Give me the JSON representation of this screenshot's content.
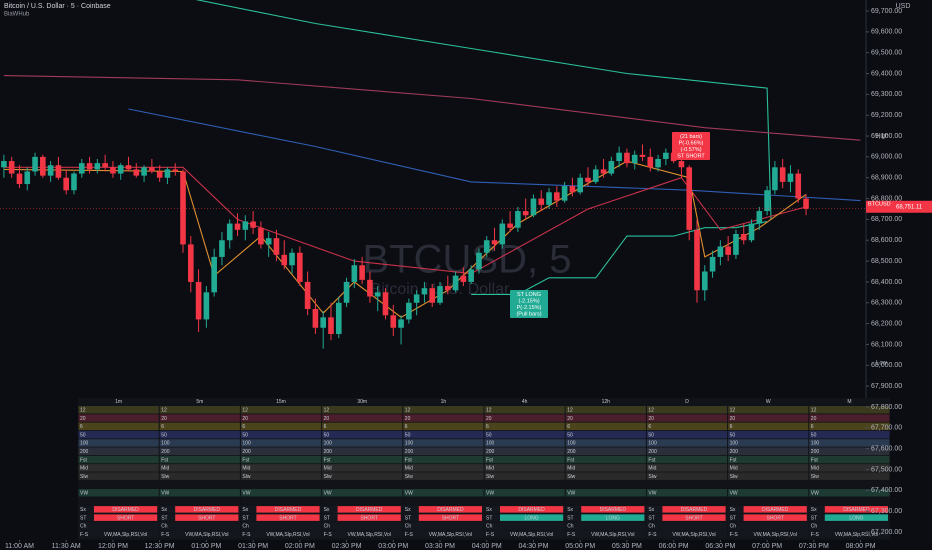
{
  "header": {
    "title": "Bitcoin / U.S. Dollar · 5 · Coinbase",
    "subtitle": "BiaWHub"
  },
  "watermark": {
    "symbol": "BTCUSD, 5",
    "name": "Bitcoin / U.S. Dollar"
  },
  "chart_data": {
    "type": "candlestick",
    "currency": "USD",
    "up_color": "#22ab94",
    "down_color": "#f23645",
    "xlim": [
      -0.5,
      110.7
    ],
    "xticks": [
      {
        "value": 2,
        "label": "11:00 AM"
      },
      {
        "value": 8,
        "label": "11:30 AM"
      },
      {
        "value": 14,
        "label": "12:00 PM"
      },
      {
        "value": 20,
        "label": "12:30 PM"
      },
      {
        "value": 26,
        "label": "01:00 PM"
      },
      {
        "value": 32,
        "label": "01:30 PM"
      },
      {
        "value": 38,
        "label": "02:00 PM"
      },
      {
        "value": 44,
        "label": "02:30 PM"
      },
      {
        "value": 50,
        "label": "03:00 PM"
      },
      {
        "value": 56,
        "label": "03:30 PM"
      },
      {
        "value": 62,
        "label": "04:00 PM"
      },
      {
        "value": 68,
        "label": "04:30 PM"
      },
      {
        "value": 74,
        "label": "05:00 PM"
      },
      {
        "value": 80,
        "label": "05:30 PM"
      },
      {
        "value": 86,
        "label": "06:00 PM"
      },
      {
        "value": 92,
        "label": "06:30 PM"
      },
      {
        "value": 98,
        "label": "07:00 PM"
      },
      {
        "value": 104,
        "label": "07:30 PM"
      },
      {
        "value": 110,
        "label": "08:00 PM"
      }
    ],
    "ylim": [
      67150,
      69750
    ],
    "yticks": [
      {
        "value": 67200,
        "label": "67,200.00"
      },
      {
        "value": 67300,
        "label": "67,300.00"
      },
      {
        "value": 67400,
        "label": "67,400.00"
      },
      {
        "value": 67500,
        "label": "67,500.00"
      },
      {
        "value": 67600,
        "label": "67,600.00"
      },
      {
        "value": 67700,
        "label": "67,700.00"
      },
      {
        "value": 67800,
        "label": "67,800.00"
      },
      {
        "value": 67900,
        "label": "67,900.00"
      },
      {
        "value": 68000,
        "label": "68,000.00"
      },
      {
        "value": 68100,
        "label": "68,100.00"
      },
      {
        "value": 68200,
        "label": "68,200.00"
      },
      {
        "value": 68300,
        "label": "68,300.00"
      },
      {
        "value": 68400,
        "label": "68,400.00"
      },
      {
        "value": 68500,
        "label": "68,500.00"
      },
      {
        "value": 68600,
        "label": "68,600.00"
      },
      {
        "value": 68700,
        "label": "68,700.00"
      },
      {
        "value": 68800,
        "label": "68,800.00"
      },
      {
        "value": 68900,
        "label": "68,900.00"
      },
      {
        "value": 69000,
        "label": "69,000.00"
      },
      {
        "value": 69100,
        "label": "69,100.00"
      },
      {
        "value": 69200,
        "label": "69,200.00"
      },
      {
        "value": 69300,
        "label": "69,300.00"
      },
      {
        "value": 69400,
        "label": "69,400.00"
      },
      {
        "value": 69500,
        "label": "69,500.00"
      },
      {
        "value": 69600,
        "label": "69,600.00"
      },
      {
        "value": 69700,
        "label": "69,700.00"
      }
    ],
    "grid": false,
    "ohlc": [
      [
        68950,
        69010,
        68900,
        68980
      ],
      [
        68980,
        69000,
        68900,
        68920
      ],
      [
        68920,
        68960,
        68850,
        68870
      ],
      [
        68870,
        68950,
        68840,
        68930
      ],
      [
        68930,
        69020,
        68910,
        69000
      ],
      [
        69000,
        69010,
        68900,
        68910
      ],
      [
        68910,
        68980,
        68880,
        68960
      ],
      [
        68960,
        69000,
        68890,
        68900
      ],
      [
        68900,
        68940,
        68820,
        68840
      ],
      [
        68840,
        68930,
        68820,
        68920
      ],
      [
        68920,
        68990,
        68900,
        68970
      ],
      [
        68970,
        69000,
        68920,
        68940
      ],
      [
        68940,
        68990,
        68920,
        68970
      ],
      [
        68970,
        69010,
        68930,
        68950
      ],
      [
        68950,
        68980,
        68900,
        68920
      ],
      [
        68920,
        68970,
        68890,
        68960
      ],
      [
        68960,
        69000,
        68930,
        68940
      ],
      [
        68940,
        68970,
        68900,
        68910
      ],
      [
        68910,
        68960,
        68880,
        68950
      ],
      [
        68950,
        68990,
        68920,
        68930
      ],
      [
        68930,
        68960,
        68880,
        68900
      ],
      [
        68900,
        68950,
        68870,
        68940
      ],
      [
        68940,
        68970,
        68910,
        68930
      ],
      [
        68930,
        68940,
        68540,
        68580
      ],
      [
        68580,
        68620,
        68350,
        68400
      ],
      [
        68400,
        68460,
        68160,
        68220
      ],
      [
        68220,
        68380,
        68180,
        68350
      ],
      [
        68350,
        68560,
        68330,
        68520
      ],
      [
        68520,
        68640,
        68480,
        68600
      ],
      [
        68600,
        68700,
        68560,
        68680
      ],
      [
        68680,
        68730,
        68620,
        68650
      ],
      [
        68650,
        68720,
        68600,
        68690
      ],
      [
        68690,
        68740,
        68630,
        68660
      ],
      [
        68660,
        68690,
        68560,
        68580
      ],
      [
        68580,
        68640,
        68520,
        68610
      ],
      [
        68610,
        68650,
        68500,
        68530
      ],
      [
        68530,
        68600,
        68460,
        68480
      ],
      [
        68480,
        68560,
        68440,
        68540
      ],
      [
        68540,
        68570,
        68380,
        68400
      ],
      [
        68400,
        68450,
        68240,
        68270
      ],
      [
        68270,
        68320,
        68150,
        68180
      ],
      [
        68180,
        68260,
        68080,
        68230
      ],
      [
        68230,
        68300,
        68120,
        68150
      ],
      [
        68150,
        68330,
        68130,
        68300
      ],
      [
        68300,
        68420,
        68280,
        68400
      ],
      [
        68400,
        68510,
        68370,
        68480
      ],
      [
        68480,
        68520,
        68390,
        68410
      ],
      [
        68410,
        68450,
        68300,
        68330
      ],
      [
        68330,
        68380,
        68260,
        68350
      ],
      [
        68350,
        68370,
        68220,
        68240
      ],
      [
        68240,
        68290,
        68140,
        68180
      ],
      [
        68180,
        68240,
        68100,
        68220
      ],
      [
        68220,
        68320,
        68200,
        68300
      ],
      [
        68300,
        68360,
        68240,
        68340
      ],
      [
        68340,
        68400,
        68300,
        68370
      ],
      [
        68370,
        68390,
        68280,
        68300
      ],
      [
        68300,
        68400,
        68290,
        68380
      ],
      [
        68380,
        68430,
        68340,
        68360
      ],
      [
        68360,
        68450,
        68350,
        68430
      ],
      [
        68430,
        68470,
        68380,
        68400
      ],
      [
        68400,
        68480,
        68390,
        68460
      ],
      [
        68460,
        68560,
        68440,
        68540
      ],
      [
        68540,
        68620,
        68520,
        68600
      ],
      [
        68600,
        68660,
        68550,
        68580
      ],
      [
        68580,
        68700,
        68560,
        68680
      ],
      [
        68680,
        68740,
        68640,
        68660
      ],
      [
        68660,
        68760,
        68640,
        68740
      ],
      [
        68740,
        68800,
        68700,
        68720
      ],
      [
        68720,
        68820,
        68710,
        68800
      ],
      [
        68800,
        68840,
        68740,
        68770
      ],
      [
        68770,
        68850,
        68750,
        68830
      ],
      [
        68830,
        68860,
        68760,
        68790
      ],
      [
        68790,
        68880,
        68780,
        68860
      ],
      [
        68860,
        68900,
        68810,
        68830
      ],
      [
        68830,
        68920,
        68820,
        68900
      ],
      [
        68900,
        68950,
        68860,
        68880
      ],
      [
        68880,
        68960,
        68870,
        68940
      ],
      [
        68940,
        68990,
        68900,
        68920
      ],
      [
        68920,
        69000,
        68910,
        68980
      ],
      [
        68980,
        69050,
        68950,
        69020
      ],
      [
        69020,
        69040,
        68950,
        68970
      ],
      [
        68970,
        69030,
        68940,
        69010
      ],
      [
        69010,
        69060,
        68980,
        69000
      ],
      [
        69000,
        69040,
        68930,
        68950
      ],
      [
        68950,
        69010,
        68930,
        68990
      ],
      [
        68990,
        69040,
        68960,
        69020
      ],
      [
        69020,
        69050,
        68970,
        68980
      ],
      [
        68980,
        69010,
        68900,
        68950
      ],
      [
        68950,
        68960,
        68600,
        68650
      ],
      [
        68650,
        68700,
        68300,
        68360
      ],
      [
        68360,
        68480,
        68310,
        68450
      ],
      [
        68450,
        68550,
        68420,
        68520
      ],
      [
        68520,
        68600,
        68480,
        68570
      ],
      [
        68570,
        68620,
        68500,
        68530
      ],
      [
        68530,
        68650,
        68510,
        68630
      ],
      [
        68630,
        68680,
        68580,
        68600
      ],
      [
        68600,
        68700,
        68590,
        68680
      ],
      [
        68680,
        68760,
        68650,
        68740
      ],
      [
        68740,
        68860,
        68720,
        68840
      ],
      [
        68840,
        68980,
        68820,
        68950
      ],
      [
        68950,
        68990,
        68850,
        68880
      ],
      [
        68880,
        68960,
        68830,
        68920
      ],
      [
        68920,
        68940,
        68780,
        68800
      ],
      [
        68800,
        68820,
        68720,
        68751.11
      ]
    ],
    "overlays": [
      {
        "color": "#2bbf9a",
        "x": [
          0,
          24,
          40,
          60,
          80,
          98,
          98.5
        ],
        "values": [
          69900,
          69760,
          69640,
          69520,
          69400,
          69330,
          68700
        ]
      },
      {
        "color": "#2bbf9a",
        "x": [
          60,
          66,
          70,
          76,
          80,
          86,
          90,
          94,
          98
        ],
        "values": [
          68340,
          68340,
          68420,
          68420,
          68620,
          68620,
          68660,
          68660,
          68690
        ]
      },
      {
        "color": "#a13a5a",
        "x": [
          0,
          30,
          60,
          90,
          110
        ],
        "values": [
          69390,
          69370,
          69280,
          69140,
          69080
        ]
      },
      {
        "color": "#2f5fb5",
        "x": [
          16,
          40,
          60,
          88,
          110
        ],
        "values": [
          69230,
          69050,
          68880,
          68840,
          68790
        ]
      },
      {
        "color": "#c8324a",
        "x": [
          0,
          23,
          30,
          45,
          60,
          75,
          87,
          92,
          103
        ],
        "values": [
          68950,
          68950,
          68700,
          68500,
          68440,
          68750,
          68900,
          68650,
          68760
        ]
      },
      {
        "color": "#e0902e",
        "x": [
          0,
          23,
          27,
          33,
          41,
          45,
          51,
          57,
          66,
          80,
          88,
          90,
          97,
          103
        ],
        "values": [
          68940,
          68930,
          68430,
          68620,
          68250,
          68400,
          68230,
          68360,
          68680,
          68980,
          68900,
          68520,
          68660,
          68820
        ]
      }
    ],
    "last_price": {
      "value": 68751.11,
      "label": "68,751.11"
    },
    "symbol_tag": "BTCUSD",
    "high_tag": "High",
    "low_tag": "Low",
    "annotations": [
      {
        "lines": [
          "(21 bars)",
          "P(-0.66%)",
          "(-0.57%)",
          "ST SHORT"
        ],
        "color": "#f23645"
      },
      {
        "lines": [
          "ST LONG",
          "(-2.15%)",
          "P(-2.15%)",
          "(Pull bars)"
        ],
        "color": "#22ab94"
      }
    ]
  },
  "dashboard": {
    "timeframes": [
      "1m",
      "5m",
      "15m",
      "30m",
      "1h",
      "4h",
      "12h",
      "D",
      "W",
      "M"
    ],
    "rows": [
      {
        "label": "12",
        "color": "#3b3a1e"
      },
      {
        "label": "20",
        "color": "#4a1e2a"
      },
      {
        "label": "6",
        "color": "#4a431c"
      },
      {
        "label": "50",
        "color": "#252a55"
      },
      {
        "label": "100",
        "color": "#2a3a50"
      },
      {
        "label": "200",
        "color": "#2b2f3a"
      },
      {
        "label": "Fst",
        "color": "#1f3a30"
      },
      {
        "label": "Mid",
        "color": "#2d2d2d"
      },
      {
        "label": "Slw",
        "color": "#2a2a2a"
      },
      {
        "label": null,
        "color": "#111318"
      },
      {
        "label": "VW",
        "color": "#1d3a33"
      },
      {
        "label": null,
        "color": "#111318"
      },
      {
        "label": "Sx",
        "color": "#15171e",
        "cells": [
          "DISARMED",
          "DISARMED",
          "DISARMED",
          "DISARMED",
          "DISARMED",
          "DISARMED",
          "DISARMED",
          "DISARMED",
          "DISARMED",
          "DISARMED"
        ],
        "cell_colors": [
          "#f23645",
          "#f23645",
          "#f23645",
          "#f23645",
          "#f23645",
          "#f23645",
          "#f23645",
          "#f23645",
          "#f23645",
          "#f23645"
        ]
      },
      {
        "label": "ST",
        "color": "#15171e",
        "cells": [
          "SHORT",
          "SHORT",
          "SHORT",
          "SHORT",
          "SHORT",
          "LONG",
          "LONG",
          "SHORT",
          "SHORT",
          "LONG"
        ],
        "cell_colors": [
          "#f23645",
          "#f23645",
          "#f23645",
          "#f23645",
          "#f23645",
          "#22ab94",
          "#22ab94",
          "#f23645",
          "#f23645",
          "#22ab94"
        ]
      },
      {
        "label": "Ch",
        "color": "#15171e"
      },
      {
        "label": "F-S",
        "color": "#15171e",
        "cells": [
          "VW,MA,Slp,RSI,Vol",
          "VW,MA,Slp,RSI,Vol",
          "VW,MA,Slp,RSI,Vol",
          "VW,MA,Slp,RSI,Vol",
          "VW,MA,Slp,RSI,Vol",
          "VW,MA,Slp,RSI,Vol",
          "VW,MA,Slp,RSI,Vol",
          "VW,MA,Slp,RSI,Vol",
          "VW,MA,Slp,RSI,Vol",
          "VW,MA,Slp,RSI,Vol"
        ]
      }
    ]
  }
}
